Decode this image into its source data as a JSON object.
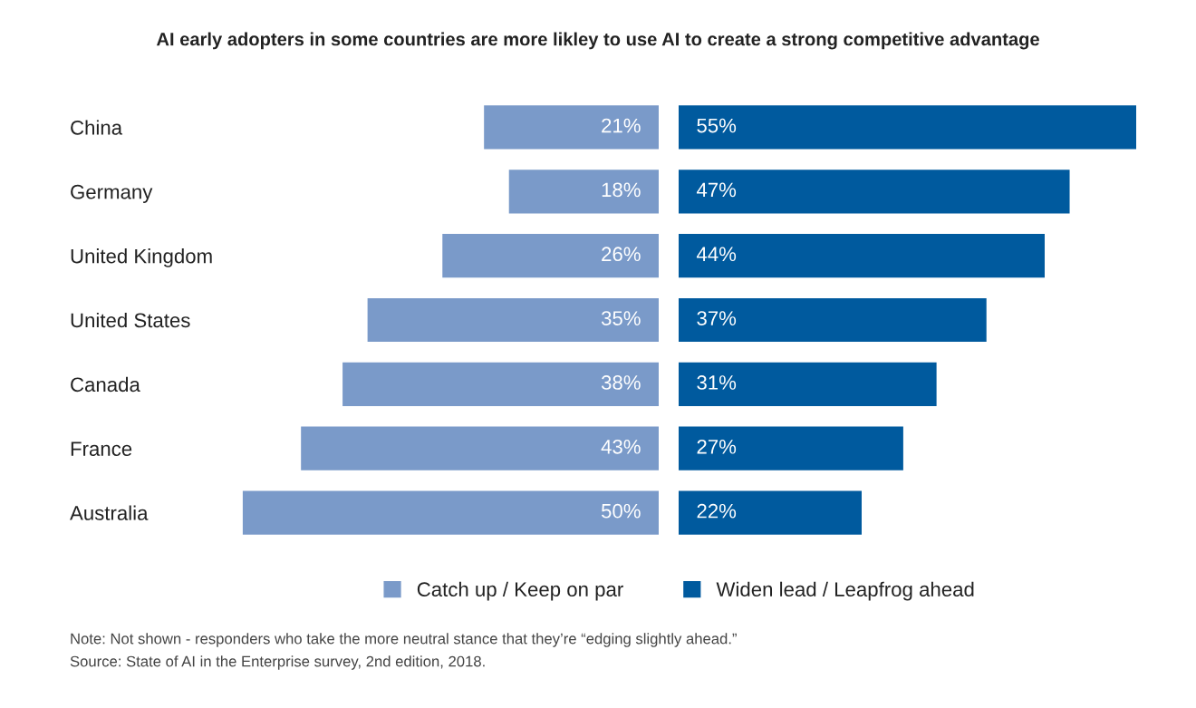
{
  "chart_data": [
    {
      "type": "bar",
      "orientation": "horizontal",
      "title": "AI early adopters in some countries are more likley to use AI to create a strong competitive advantage",
      "categories": [
        "China",
        "Germany",
        "United Kingdom",
        "United States",
        "Canada",
        "France",
        "Australia"
      ],
      "series": [
        {
          "name": "Catch up / Keep on par",
          "color": "#7a9ac9",
          "values": [
            21,
            18,
            26,
            35,
            38,
            43,
            50
          ],
          "value_labels": [
            "21%",
            "18%",
            "26%",
            "35%",
            "38%",
            "43%",
            "50%"
          ]
        }
      ],
      "tick_labels": "y",
      "legend": "bottom",
      "annotations": [
        "Note: Not shown - responders who take the more neutral stance that they’re “edging slightly ahead.”",
        "Source: State of AI in the Enterprise survey, 2nd edition, 2018."
      ]
    },
    {
      "type": "bar",
      "orientation": "horizontal",
      "categories": [
        null,
        null,
        null,
        null,
        null,
        null,
        null
      ],
      "series": [
        {
          "name": "Widen lead / Leapfrog ahead",
          "color": "#005a9e",
          "values": [
            55,
            47,
            44,
            37,
            31,
            27,
            22
          ],
          "value_labels": [
            "55%",
            "47%",
            "44%",
            "37%",
            "31%",
            "27%",
            "22%"
          ]
        }
      ],
      "tick_labels": false,
      "legend": "bottom"
    }
  ]
}
